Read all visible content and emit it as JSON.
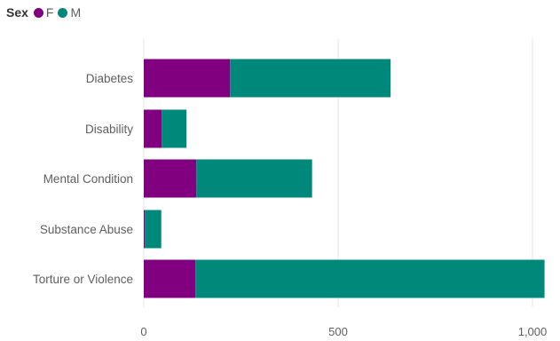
{
  "legend": {
    "title": "Sex",
    "items": [
      {
        "label": "F",
        "color": "#800080"
      },
      {
        "label": "M",
        "color": "#00897B"
      }
    ]
  },
  "chart_data": {
    "type": "bar",
    "orientation": "horizontal",
    "stacked": true,
    "categories": [
      "Diabetes",
      "Disability",
      "Mental Condition",
      "Substance Abuse",
      "Torture or Violence"
    ],
    "series": [
      {
        "name": "F",
        "color": "#800080",
        "values": [
          222,
          46,
          135,
          3,
          133
        ]
      },
      {
        "name": "M",
        "color": "#00897B",
        "values": [
          413,
          64,
          298,
          42,
          898
        ]
      }
    ],
    "xlim": [
      0,
      1000
    ],
    "xticks": [
      0,
      500,
      1000
    ],
    "xtick_labels": [
      "0",
      "500",
      "1,000"
    ],
    "grid": true,
    "legend_position": "top-left"
  }
}
